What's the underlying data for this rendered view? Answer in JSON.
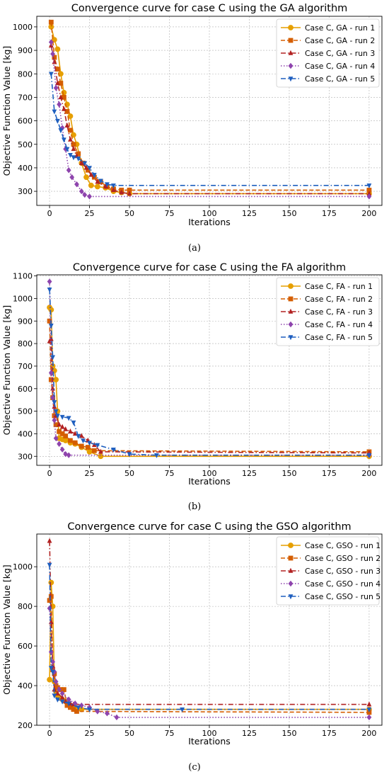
{
  "chart_data": [
    {
      "type": "line",
      "title": "Convergence curve for case C using the GA algorithm",
      "xlabel": "Iterations",
      "ylabel": "Objective Function Value [kg]",
      "caption": "(a)",
      "xlim": [
        -8,
        208
      ],
      "ylim": [
        240,
        1045
      ],
      "xticks": [
        0,
        25,
        50,
        75,
        100,
        125,
        150,
        175,
        200
      ],
      "yticks": [
        300,
        400,
        500,
        600,
        700,
        800,
        900,
        1000
      ],
      "grid": true,
      "legend": "top-right",
      "series": [
        {
          "name": "Case C, GA - run 1",
          "color": "#e69f00",
          "dash": "solid",
          "marker": "circle",
          "x": [
            1,
            3,
            5,
            7,
            9,
            11,
            13,
            15,
            17,
            20,
            23,
            26,
            30,
            35,
            40,
            45,
            50,
            200
          ],
          "y": [
            1000,
            945,
            905,
            800,
            720,
            670,
            620,
            540,
            500,
            420,
            360,
            325,
            320,
            315,
            300,
            295,
            290,
            290
          ]
        },
        {
          "name": "Case C, GA - run 2",
          "color": "#d55e00",
          "dash": "dashed",
          "marker": "square",
          "x": [
            1,
            3,
            5,
            7,
            9,
            11,
            13,
            15,
            18,
            21,
            24,
            28,
            32,
            36,
            40,
            45,
            50,
            200
          ],
          "y": [
            1020,
            870,
            820,
            760,
            700,
            640,
            560,
            500,
            460,
            420,
            390,
            360,
            340,
            320,
            310,
            305,
            305,
            305
          ]
        },
        {
          "name": "Case C, GA - run 3",
          "color": "#b22222",
          "dash": "dashdot",
          "marker": "triangle-up",
          "x": [
            1,
            3,
            5,
            7,
            9,
            11,
            13,
            15,
            17,
            20,
            23,
            26,
            30,
            35,
            40,
            45,
            50,
            200
          ],
          "y": [
            920,
            850,
            760,
            700,
            650,
            580,
            520,
            480,
            450,
            420,
            400,
            370,
            340,
            320,
            305,
            295,
            290,
            290
          ]
        },
        {
          "name": "Case C, GA - run 4",
          "color": "#8e44ad",
          "dash": "dotted",
          "marker": "diamond",
          "x": [
            1,
            2,
            4,
            6,
            8,
            10,
            12,
            14,
            17,
            20,
            22,
            25,
            200
          ],
          "y": [
            935,
            885,
            740,
            670,
            570,
            480,
            390,
            360,
            330,
            300,
            285,
            278,
            278
          ]
        },
        {
          "name": "Case C, GA - run 5",
          "color": "#1f5fbf",
          "dash": "dashdot",
          "marker": "triangle-down",
          "x": [
            1,
            3,
            5,
            7,
            9,
            11,
            13,
            15,
            18,
            22,
            25,
            28,
            32,
            36,
            40,
            200
          ],
          "y": [
            800,
            640,
            600,
            560,
            520,
            480,
            455,
            445,
            440,
            420,
            400,
            370,
            345,
            330,
            325,
            325
          ]
        }
      ]
    },
    {
      "type": "line",
      "title": "Convergence curve for case C using the FA algorithm",
      "xlabel": "Iterations",
      "ylabel": "Objective Function Value [kg]",
      "caption": "(b)",
      "xlim": [
        -8,
        208
      ],
      "ylim": [
        260,
        1105
      ],
      "xticks": [
        0,
        25,
        50,
        75,
        100,
        125,
        150,
        175,
        200
      ],
      "yticks": [
        300,
        400,
        500,
        600,
        700,
        800,
        900,
        1000,
        1100
      ],
      "grid": true,
      "legend": "top-right",
      "series": [
        {
          "name": "Case C, FA - run 1",
          "color": "#e69f00",
          "dash": "solid",
          "marker": "circle",
          "x": [
            0,
            1,
            2,
            3,
            4,
            5,
            6,
            8,
            10,
            13,
            16,
            20,
            25,
            32,
            200
          ],
          "y": [
            960,
            950,
            700,
            680,
            640,
            500,
            380,
            375,
            370,
            360,
            355,
            340,
            320,
            300,
            300
          ]
        },
        {
          "name": "Case C, FA - run 2",
          "color": "#d55e00",
          "dash": "dashed",
          "marker": "square",
          "x": [
            0,
            1,
            2,
            3,
            4,
            6,
            8,
            10,
            13,
            16,
            20,
            24,
            28,
            200
          ],
          "y": [
            900,
            640,
            560,
            480,
            440,
            410,
            400,
            390,
            370,
            360,
            345,
            340,
            325,
            320
          ]
        },
        {
          "name": "Case C, FA - run 3",
          "color": "#b22222",
          "dash": "dashdot",
          "marker": "triangle-up",
          "x": [
            0,
            1,
            2,
            3,
            4,
            6,
            8,
            10,
            13,
            16,
            20,
            24,
            28,
            32,
            200
          ],
          "y": [
            810,
            820,
            600,
            520,
            480,
            440,
            430,
            420,
            410,
            400,
            390,
            370,
            350,
            320,
            315
          ]
        },
        {
          "name": "Case C, FA - run 4",
          "color": "#8e44ad",
          "dash": "dotted",
          "marker": "diamond",
          "x": [
            0,
            1,
            2,
            3,
            4,
            6,
            8,
            10,
            12,
            200
          ],
          "y": [
            1075,
            670,
            560,
            460,
            380,
            355,
            330,
            310,
            305,
            305
          ]
        },
        {
          "name": "Case C, FA - run 5",
          "color": "#1f5fbf",
          "dash": "dashdot",
          "marker": "triangle-down",
          "x": [
            0,
            1,
            2,
            3,
            4,
            5,
            8,
            12,
            15,
            18,
            21,
            25,
            30,
            40,
            50,
            67,
            200
          ],
          "y": [
            1040,
            880,
            740,
            540,
            500,
            480,
            475,
            470,
            450,
            390,
            370,
            360,
            350,
            330,
            310,
            305,
            305
          ]
        }
      ]
    },
    {
      "type": "line",
      "title": "Convergence curve for case C using the GSO algorithm",
      "xlabel": "Iterations",
      "ylabel": "Objective Function Value [kg]",
      "caption": "(c)",
      "xlim": [
        -8,
        208
      ],
      "ylim": [
        200,
        1165
      ],
      "xticks": [
        0,
        25,
        50,
        75,
        100,
        125,
        150,
        175,
        200
      ],
      "yticks": [
        200,
        400,
        600,
        800,
        1000
      ],
      "grid": true,
      "legend": "top-right",
      "series": [
        {
          "name": "Case C, GSO - run 1",
          "color": "#e69f00",
          "dash": "solid",
          "marker": "circle",
          "x": [
            0,
            1,
            2,
            3,
            4,
            5,
            6,
            8,
            10,
            13,
            16,
            20,
            200
          ],
          "y": [
            430,
            920,
            800,
            420,
            370,
            350,
            340,
            330,
            320,
            300,
            290,
            280,
            280
          ]
        },
        {
          "name": "Case C, GSO - run 2",
          "color": "#d55e00",
          "dash": "dashed",
          "marker": "square",
          "x": [
            0,
            1,
            2,
            3,
            4,
            5,
            7,
            9,
            11,
            13,
            15,
            17,
            200
          ],
          "y": [
            830,
            850,
            480,
            460,
            400,
            390,
            380,
            380,
            300,
            290,
            280,
            270,
            265
          ]
        },
        {
          "name": "Case C, GSO - run 3",
          "color": "#b22222",
          "dash": "dashdot",
          "marker": "triangle-up",
          "x": [
            0,
            1,
            2,
            3,
            5,
            8,
            10,
            13,
            15,
            200
          ],
          "y": [
            1130,
            720,
            500,
            380,
            360,
            340,
            320,
            310,
            305,
            305
          ]
        },
        {
          "name": "Case C, GSO - run 4",
          "color": "#8e44ad",
          "dash": "dotted",
          "marker": "diamond",
          "x": [
            0,
            1,
            2,
            3,
            4,
            6,
            8,
            12,
            16,
            20,
            25,
            30,
            36,
            42,
            200
          ],
          "y": [
            790,
            570,
            520,
            470,
            420,
            380,
            360,
            330,
            310,
            300,
            290,
            270,
            260,
            240,
            240
          ]
        },
        {
          "name": "Case C, GSO - run 5",
          "color": "#1f5fbf",
          "dash": "dashdot",
          "marker": "triangle-down",
          "x": [
            0,
            1,
            2,
            3,
            5,
            8,
            12,
            18,
            25,
            83,
            200
          ],
          "y": [
            1010,
            490,
            470,
            350,
            330,
            320,
            310,
            290,
            280,
            280,
            280
          ]
        }
      ]
    }
  ]
}
